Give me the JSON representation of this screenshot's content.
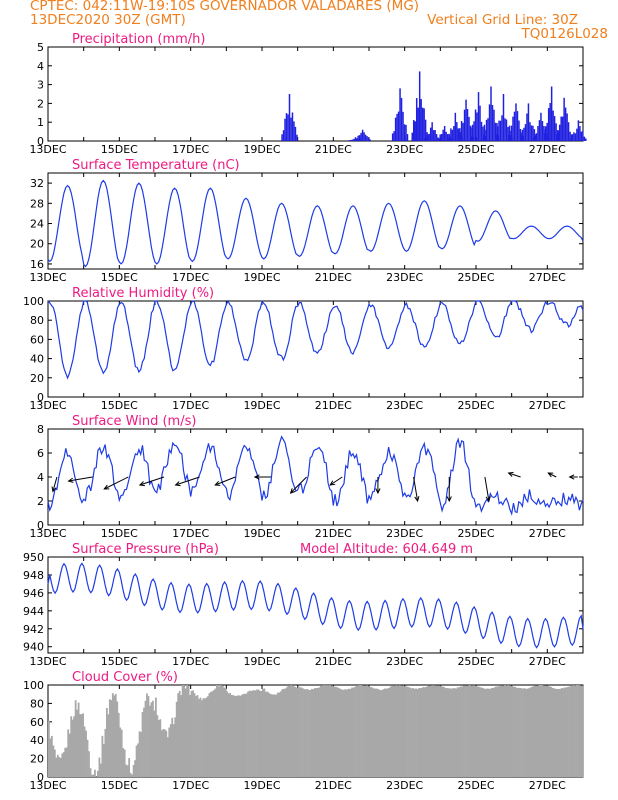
{
  "header": {
    "line1": "CPTEC:  042:11W-19:10S   GOVERNADOR VALADARES (MG)",
    "line2_left": "13DEC2020 30Z (GMT)",
    "line2_right": "Vertical Grid Line: 30Z",
    "line3_right": "TQ0126L028"
  },
  "colors": {
    "header": "#f07f1e",
    "title": "#ee1b82",
    "series": "#1e3ce6",
    "bars": "#2020e0",
    "cloud": "#a8a8a8",
    "arrows": "#000000"
  },
  "chart_data": [
    {
      "type": "bar",
      "title": "Precipitation (mm/h)",
      "ylim": [
        0,
        5
      ],
      "yticks": [
        0,
        1,
        2,
        3,
        4,
        5
      ],
      "xticks": [
        "13DEC",
        "15DEC",
        "17DEC",
        "19DEC",
        "21DEC",
        "23DEC",
        "25DEC",
        "27DEC"
      ],
      "x_days": [
        0,
        15
      ],
      "bursts": [
        {
          "day": 6.75,
          "peak": 2.5
        },
        {
          "day": 8.6,
          "peak": 0.2
        },
        {
          "day": 8.8,
          "peak": 0.6
        },
        {
          "day": 9.85,
          "peak": 2.8
        },
        {
          "day": 10.4,
          "peak": 3.7
        },
        {
          "day": 10.75,
          "peak": 1.0
        },
        {
          "day": 11.1,
          "peak": 0.8
        },
        {
          "day": 11.4,
          "peak": 1.5
        },
        {
          "day": 11.7,
          "peak": 2.2
        },
        {
          "day": 12.05,
          "peak": 2.6
        },
        {
          "day": 12.4,
          "peak": 2.9
        },
        {
          "day": 12.75,
          "peak": 2.5
        },
        {
          "day": 13.1,
          "peak": 2.0
        },
        {
          "day": 13.45,
          "peak": 2.0
        },
        {
          "day": 13.8,
          "peak": 1.5
        },
        {
          "day": 14.1,
          "peak": 2.9
        },
        {
          "day": 14.45,
          "peak": 2.3
        },
        {
          "day": 14.85,
          "peak": 1.1
        }
      ]
    },
    {
      "type": "line",
      "title": "Surface Temperature (nC)",
      "ylim": [
        15,
        34
      ],
      "yticks": [
        16,
        20,
        24,
        28,
        32
      ],
      "xticks": [
        "13DEC",
        "15DEC",
        "17DEC",
        "19DEC",
        "21DEC",
        "23DEC",
        "25DEC",
        "27DEC"
      ],
      "x_days": [
        0,
        15
      ],
      "daily_min": [
        16.5,
        15.5,
        16.0,
        16.0,
        16.5,
        17.0,
        17.0,
        17.5,
        18.0,
        18.5,
        18.5,
        19.0,
        20.5,
        21.0,
        21.0
      ],
      "daily_max": [
        31.5,
        32.5,
        32.0,
        31.0,
        31.0,
        29.0,
        28.0,
        27.5,
        27.5,
        28.0,
        28.5,
        27.5,
        26.5,
        23.5,
        23.5
      ],
      "end_value": 20.5
    },
    {
      "type": "line",
      "title": "Relative Humidity (%)",
      "ylim": [
        0,
        100
      ],
      "yticks": [
        0,
        20,
        40,
        60,
        80,
        100
      ],
      "xticks": [
        "13DEC",
        "15DEC",
        "17DEC",
        "19DEC",
        "21DEC",
        "23DEC",
        "25DEC",
        "27DEC"
      ],
      "x_days": [
        0,
        15
      ],
      "daily_max": [
        100,
        100,
        100,
        100,
        100,
        99,
        98,
        97,
        96,
        95,
        96,
        97,
        100,
        100,
        100
      ],
      "daily_min": [
        22,
        25,
        27,
        28,
        33,
        38,
        40,
        45,
        45,
        50,
        52,
        55,
        62,
        70,
        75
      ],
      "start_value": 100,
      "end_value": 90
    },
    {
      "type": "line",
      "title": "Surface Wind (m/s)",
      "ylim": [
        0,
        8
      ],
      "yticks": [
        0,
        2,
        4,
        6,
        8
      ],
      "xticks": [
        "13DEC",
        "15DEC",
        "17DEC",
        "19DEC",
        "21DEC",
        "23DEC",
        "25DEC",
        "27DEC"
      ],
      "x_days": [
        0,
        15
      ],
      "daily_max": [
        6.0,
        6.5,
        6.5,
        6.8,
        6.5,
        6.5,
        7.0,
        6.5,
        6.0,
        6.0,
        6.5,
        7.0,
        2.5,
        2.5,
        2.2
      ],
      "daily_min": [
        1.5,
        2.5,
        2.5,
        3.0,
        2.8,
        2.5,
        2.5,
        2.8,
        2.0,
        2.5,
        2.5,
        1.5,
        1.2,
        1.5,
        1.7
      ],
      "vectors": [
        {
          "day": 0.25,
          "u": -0.5,
          "v": -1.8
        },
        {
          "day": 1.25,
          "u": -3.0,
          "v": -0.5
        },
        {
          "day": 2.25,
          "u": -3.0,
          "v": -1.5
        },
        {
          "day": 3.25,
          "u": -3.0,
          "v": -1.0
        },
        {
          "day": 4.25,
          "u": -3.0,
          "v": -1.0
        },
        {
          "day": 5.25,
          "u": -2.5,
          "v": -1.0
        },
        {
          "day": 6.25,
          "u": -2.0,
          "v": 0.0
        },
        {
          "day": 7.25,
          "u": -2.0,
          "v": -2.0
        },
        {
          "day": 8.25,
          "u": -1.5,
          "v": -1.0
        },
        {
          "day": 9.25,
          "u": 0.0,
          "v": -2.0
        },
        {
          "day": 10.25,
          "u": 0.5,
          "v": -3.0
        },
        {
          "day": 11.25,
          "u": 0.0,
          "v": -3.0
        },
        {
          "day": 12.25,
          "u": 0.5,
          "v": -3.0
        },
        {
          "day": 13.25,
          "u": -1.5,
          "v": 0.5
        },
        {
          "day": 14.25,
          "u": -1.0,
          "v": 0.5
        },
        {
          "day": 14.85,
          "u": -1.0,
          "v": 0.0
        }
      ]
    },
    {
      "type": "line",
      "title": "Surface Pressure (hPa)",
      "annotation": "Model Altitude: 604.649  m",
      "ylim": [
        939.3,
        950
      ],
      "yticks": [
        940,
        942,
        944,
        946,
        948,
        950
      ],
      "xticks": [
        "13DEC",
        "15DEC",
        "17DEC",
        "19DEC",
        "21DEC",
        "23DEC",
        "25DEC",
        "27DEC"
      ],
      "x_days": [
        0,
        15
      ],
      "trend_start": 947.5,
      "trend_end": 941.5,
      "start_value": 947.0,
      "end_value": 942.0
    },
    {
      "type": "area",
      "title": "Cloud Cover (%)",
      "ylim": [
        0,
        100
      ],
      "yticks": [
        0,
        20,
        40,
        60,
        80,
        100
      ],
      "xticks": [
        "13DEC",
        "15DEC",
        "17DEC",
        "19DEC",
        "21DEC",
        "23DEC",
        "25DEC",
        "27DEC"
      ],
      "x_days": [
        0,
        15
      ],
      "daily_max": [
        78,
        90,
        85,
        100,
        100,
        95,
        100,
        100,
        100,
        100,
        100,
        100,
        100,
        100,
        100
      ],
      "daily_min": [
        15,
        5,
        10,
        45,
        85,
        88,
        90,
        95,
        95,
        95,
        96,
        96,
        96,
        96,
        96
      ]
    }
  ]
}
